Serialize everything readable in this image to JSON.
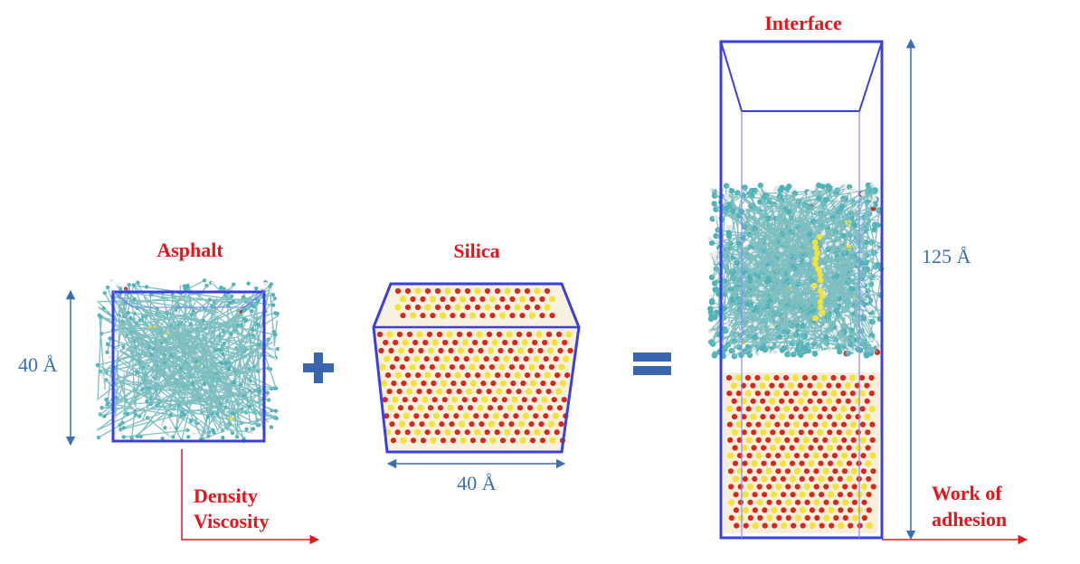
{
  "labels": {
    "asphalt": "Asphalt",
    "silica": "Silica",
    "interface": "Interface",
    "asphalt_dim": "40 Å",
    "silica_dim": "40 Å",
    "interface_dim": "125 Å",
    "property_1": "Density",
    "property_2": "Viscosity",
    "adhesion_1": "Work of",
    "adhesion_2": "adhesion"
  },
  "colors": {
    "box": "#3b3fe0",
    "dimension": "#3a6fb5",
    "label": "#e8141b",
    "operator": "#3a66b0",
    "oxygen": "#d8281e",
    "silicon": "#f2e23a",
    "carbon": "#4fb3b8",
    "hydrogen": "#e4e6e8"
  },
  "icons": {
    "plus": "plus-icon",
    "equals": "equals-icon"
  }
}
